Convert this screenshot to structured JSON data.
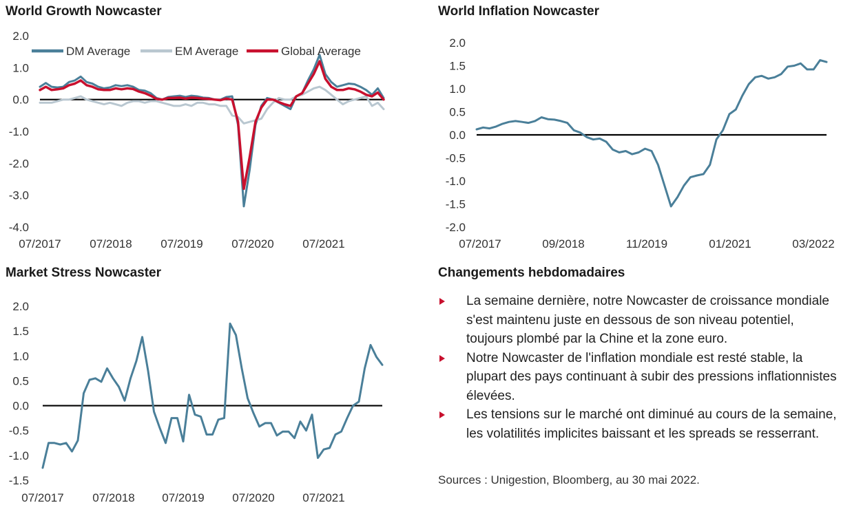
{
  "colors": {
    "dm": "#4a7f99",
    "em": "#b9c7d0",
    "global": "#c8102e",
    "single": "#4a7f99",
    "bullet": "#c8102e"
  },
  "chart_data": [
    {
      "type": "line",
      "title": "World Growth Nowcaster",
      "xlabel": "",
      "ylabel": "",
      "ylim": [
        -4.0,
        2.0
      ],
      "yticks": [
        "2.0",
        "1.0",
        "0.0",
        "-1.0",
        "-2.0",
        "-3.0",
        "-4.0"
      ],
      "ytick_values": [
        2,
        1,
        0,
        -1,
        -2,
        -3,
        -4
      ],
      "xticks": [
        "07/2017",
        "07/2018",
        "07/2019",
        "07/2020",
        "07/2021"
      ],
      "legend": "top",
      "series": [
        {
          "name": "DM Average",
          "values": [
            0.4,
            0.52,
            0.4,
            0.38,
            0.4,
            0.55,
            0.6,
            0.72,
            0.55,
            0.5,
            0.4,
            0.35,
            0.38,
            0.45,
            0.42,
            0.45,
            0.4,
            0.3,
            0.28,
            0.2,
            0.05,
            0.0,
            0.08,
            0.1,
            0.12,
            0.08,
            0.12,
            0.1,
            0.06,
            0.05,
            0.0,
            0.0,
            0.08,
            0.1,
            -0.8,
            -3.35,
            -2.2,
            -0.8,
            -0.2,
            0.05,
            0.0,
            -0.1,
            -0.2,
            -0.3,
            0.1,
            0.2,
            0.6,
            0.95,
            1.4,
            0.8,
            0.55,
            0.4,
            0.45,
            0.5,
            0.48,
            0.4,
            0.3,
            0.15,
            0.35,
            0.05
          ]
        },
        {
          "name": "EM Average",
          "values": [
            -0.1,
            -0.1,
            -0.1,
            -0.05,
            0.0,
            0.0,
            0.05,
            0.1,
            0.0,
            -0.05,
            -0.1,
            -0.15,
            -0.1,
            -0.15,
            -0.2,
            -0.1,
            -0.05,
            -0.05,
            -0.1,
            -0.05,
            -0.05,
            -0.1,
            -0.15,
            -0.2,
            -0.2,
            -0.15,
            -0.2,
            -0.1,
            -0.1,
            -0.15,
            -0.15,
            -0.2,
            -0.2,
            -0.5,
            -0.55,
            -0.75,
            -0.7,
            -0.65,
            -0.6,
            -0.3,
            -0.1,
            0.05,
            0.0,
            0.0,
            0.1,
            0.15,
            0.25,
            0.35,
            0.4,
            0.3,
            0.15,
            0.0,
            -0.15,
            -0.05,
            0.0,
            0.05,
            0.1,
            -0.2,
            -0.1,
            -0.3
          ]
        },
        {
          "name": "Global Average",
          "values": [
            0.3,
            0.4,
            0.3,
            0.32,
            0.35,
            0.45,
            0.5,
            0.6,
            0.45,
            0.4,
            0.32,
            0.3,
            0.3,
            0.35,
            0.32,
            0.35,
            0.33,
            0.25,
            0.2,
            0.12,
            0.02,
            0.0,
            0.05,
            0.05,
            0.06,
            0.03,
            0.06,
            0.05,
            0.03,
            0.02,
            0.0,
            -0.02,
            0.03,
            0.0,
            -0.7,
            -2.8,
            -1.8,
            -0.7,
            -0.25,
            0.0,
            0.0,
            -0.08,
            -0.15,
            -0.2,
            0.1,
            0.2,
            0.5,
            0.8,
            1.2,
            0.65,
            0.4,
            0.3,
            0.3,
            0.35,
            0.32,
            0.25,
            0.15,
            0.1,
            0.22,
            0.0
          ]
        }
      ]
    },
    {
      "type": "line",
      "title": "World Inflation Nowcaster",
      "xlabel": "",
      "ylabel": "",
      "ylim": [
        -2.0,
        2.0
      ],
      "yticks": [
        "2.0",
        "1.5",
        "1.0",
        "0.5",
        "0.0",
        "-0.5",
        "-1.0",
        "-1.5",
        "-2.0"
      ],
      "ytick_values": [
        2,
        1.5,
        1,
        0.5,
        0,
        -0.5,
        -1,
        -1.5,
        -2
      ],
      "xticks": [
        "07/2017",
        "09/2018",
        "11/2019",
        "01/2021",
        "03/2022"
      ],
      "series": [
        {
          "name": "",
          "values": [
            0.12,
            0.16,
            0.14,
            0.18,
            0.24,
            0.28,
            0.3,
            0.28,
            0.26,
            0.3,
            0.38,
            0.34,
            0.33,
            0.3,
            0.26,
            0.1,
            0.05,
            -0.05,
            -0.1,
            -0.08,
            -0.15,
            -0.32,
            -0.38,
            -0.35,
            -0.42,
            -0.38,
            -0.3,
            -0.35,
            -0.65,
            -1.1,
            -1.55,
            -1.35,
            -1.1,
            -0.92,
            -0.88,
            -0.85,
            -0.65,
            -0.1,
            0.1,
            0.45,
            0.55,
            0.85,
            1.1,
            1.25,
            1.28,
            1.22,
            1.25,
            1.32,
            1.48,
            1.5,
            1.55,
            1.42,
            1.42,
            1.62,
            1.58
          ]
        }
      ]
    },
    {
      "type": "line",
      "title": "Market Stress Nowcaster",
      "xlabel": "",
      "ylabel": "",
      "ylim": [
        -1.5,
        2.0
      ],
      "yticks": [
        "2.0",
        "1.5",
        "1.0",
        "0.5",
        "0.0",
        "-0.5",
        "-1.0",
        "-1.5"
      ],
      "ytick_values": [
        2,
        1.5,
        1,
        0.5,
        0,
        -0.5,
        -1,
        -1.5
      ],
      "xticks": [
        "07/2017",
        "07/2018",
        "07/2019",
        "07/2020",
        "07/2021"
      ],
      "series": [
        {
          "name": "",
          "values": [
            -1.25,
            -0.75,
            -0.75,
            -0.78,
            -0.75,
            -0.92,
            -0.7,
            0.25,
            0.52,
            0.55,
            0.48,
            0.75,
            0.55,
            0.38,
            0.1,
            0.55,
            0.9,
            1.38,
            0.7,
            -0.12,
            -0.45,
            -0.75,
            -0.25,
            -0.25,
            -0.72,
            0.22,
            -0.18,
            -0.22,
            -0.58,
            -0.58,
            -0.28,
            -0.25,
            1.65,
            1.42,
            0.75,
            0.15,
            -0.15,
            -0.42,
            -0.35,
            -0.35,
            -0.6,
            -0.52,
            -0.52,
            -0.65,
            -0.32,
            -0.5,
            -0.18,
            -1.05,
            -0.88,
            -0.85,
            -0.58,
            -0.52,
            -0.25,
            0.0,
            0.08,
            0.75,
            1.22,
            0.98,
            0.82
          ]
        }
      ]
    }
  ],
  "panel4": {
    "title": "Changements hebdomadaires",
    "bullets": [
      "La semaine dernière, notre Nowcaster de croissance mondiale s'est maintenu juste en dessous de son niveau potentiel, toujours plombé par la Chine et la zone euro.",
      "Notre Nowcaster de l'inflation mondiale est resté stable, la plupart des pays continuant à subir des pressions inflationnistes élevées.",
      "Les tensions sur le marché ont diminué au cours de la semaine, les volatilités implicites baissant et les spreads se resserrant."
    ],
    "sources": "Sources : Unigestion, Bloomberg, au 30 mai 2022."
  }
}
